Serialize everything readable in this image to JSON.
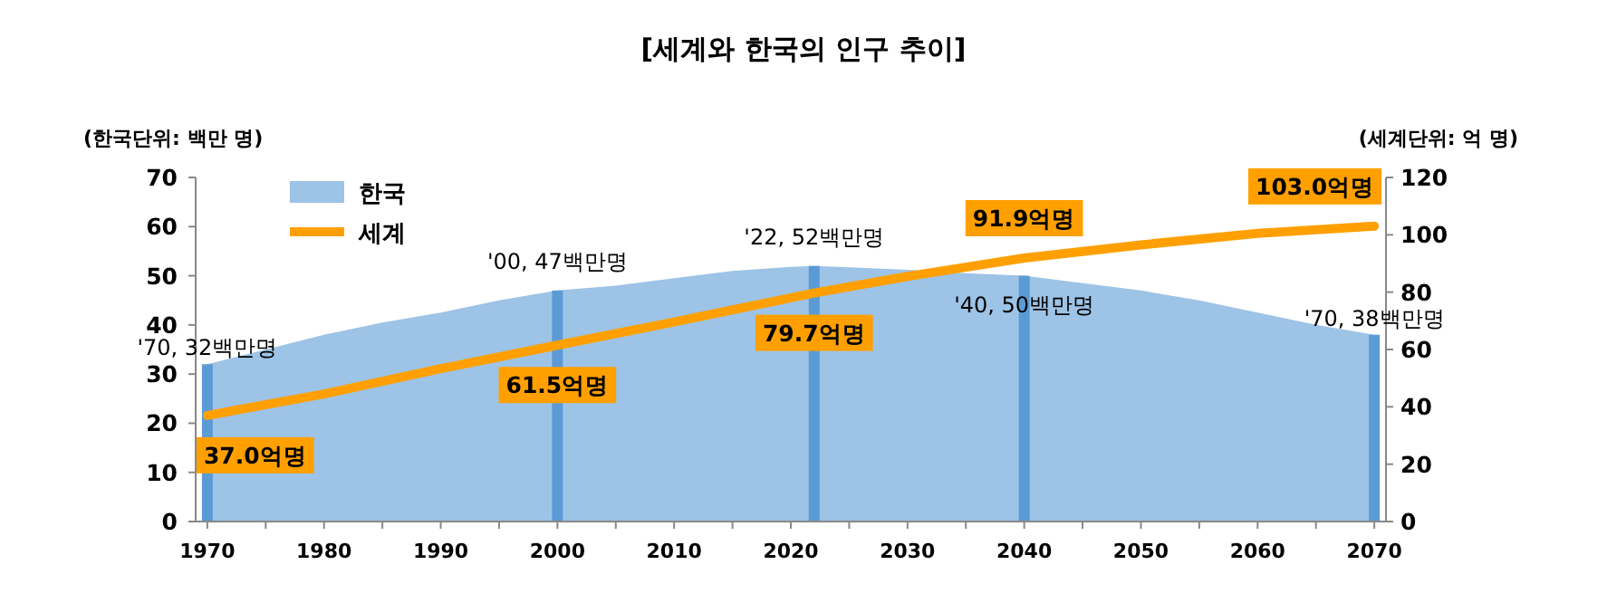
{
  "chart_data": {
    "type": "area",
    "title": "[세계와 한국의 인구 추이]",
    "ylabel": "(한국단위: 백만 명)",
    "y2label": "(세계단위: 억 명)",
    "legend": "top left",
    "xlim": [
      1969,
      2071
    ],
    "xticks": [
      1970,
      {
        "value": 1975,
        "label": null
      },
      1980,
      {
        "value": 1985,
        "label": null
      },
      1990,
      {
        "value": 1995,
        "label": null
      },
      2000,
      {
        "value": 2005,
        "label": null
      },
      2010,
      {
        "value": 2015,
        "label": null
      },
      2020,
      {
        "value": 2025,
        "label": null
      },
      2030,
      {
        "value": 2035,
        "label": null
      },
      2040,
      {
        "value": 2045,
        "label": null
      },
      2050,
      {
        "value": 2055,
        "label": null
      },
      2060,
      {
        "value": 2065,
        "label": null
      },
      2070
    ],
    "ylim": [
      0,
      70
    ],
    "yticks": [
      0,
      10,
      20,
      30,
      40,
      50,
      60,
      70
    ],
    "y2lim": [
      0,
      120
    ],
    "y2ticks": [
      0,
      20,
      40,
      60,
      80,
      100,
      120
    ],
    "series": [
      {
        "name": "한국",
        "color": "#9dc3e6",
        "x": [
          1970,
          1975,
          1980,
          1985,
          1990,
          1995,
          2000,
          2005,
          2010,
          2015,
          2020,
          2022,
          2025,
          2030,
          2035,
          2040,
          2045,
          2050,
          2055,
          2060,
          2065,
          2070
        ],
        "values": [
          32,
          35,
          38,
          40.5,
          42.5,
          45,
          47,
          48,
          49.5,
          51,
          51.8,
          52,
          51.7,
          51.2,
          50.5,
          50,
          48.5,
          47,
          45,
          42.5,
          40,
          38
        ]
      },
      {
        "type": "bar",
        "color": "#5b9bd5",
        "x": [
          1970,
          2000,
          2022,
          2040,
          2070
        ],
        "values": [
          32,
          47,
          52,
          50,
          38
        ],
        "value_labels": [
          "'70, 32백만명",
          "'00, 47백만명",
          "'22, 52백만명",
          "'40, 50백만명",
          "'70, 38백만명"
        ]
      },
      {
        "name": "세계",
        "type": "line",
        "axis": "y2",
        "color": "#ffa000",
        "x": [
          1970,
          1980,
          1990,
          2000,
          2010,
          2022,
          2030,
          2040,
          2050,
          2060,
          2070
        ],
        "values": [
          37.0,
          44.5,
          53.3,
          61.5,
          69.6,
          79.7,
          85.5,
          91.9,
          96.5,
          100.5,
          103.0
        ],
        "value_labels": [
          "37.0억명",
          null,
          null,
          "61.5억명",
          null,
          "79.7억명",
          null,
          "91.9억명",
          null,
          null,
          "103.0억명"
        ]
      }
    ]
  }
}
